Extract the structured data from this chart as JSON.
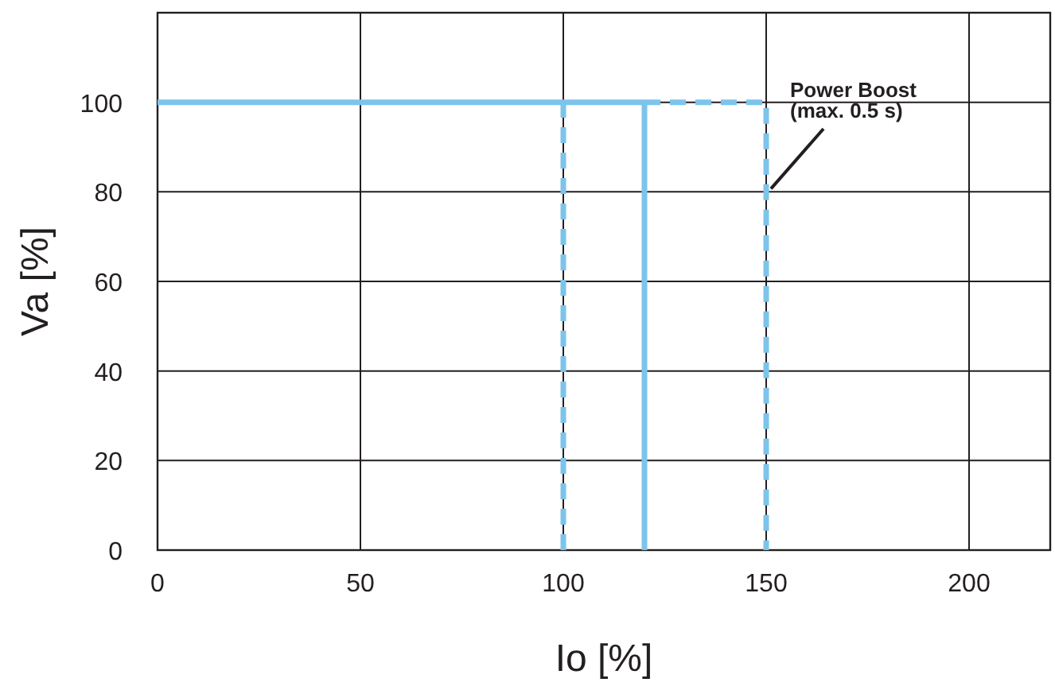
{
  "chart_data": {
    "type": "line",
    "xlabel": "Io [%]",
    "ylabel": "Va [%]",
    "xlim": [
      0,
      220
    ],
    "ylim": [
      0,
      120
    ],
    "xticks": [
      0,
      50,
      100,
      150,
      200
    ],
    "yticks": [
      0,
      20,
      40,
      60,
      80,
      100,
      {
        "value": 120,
        "label": null
      }
    ],
    "grid": true,
    "series": [
      {
        "color": "#7cc4ec",
        "line_style": "solid",
        "x": [
          0,
          120,
          120
        ],
        "values": [
          100,
          100,
          0
        ]
      },
      {
        "color": "#7cc4ec",
        "line_style": "dashed",
        "x": [
          100,
          100,
          110,
          120,
          150,
          150
        ],
        "values": [
          0,
          100,
          null,
          100,
          100,
          0
        ]
      }
    ],
    "annotations": [
      {
        "text": "Power Boost\n(max. 0.5 s)",
        "x": 150,
        "y": 80
      }
    ]
  }
}
